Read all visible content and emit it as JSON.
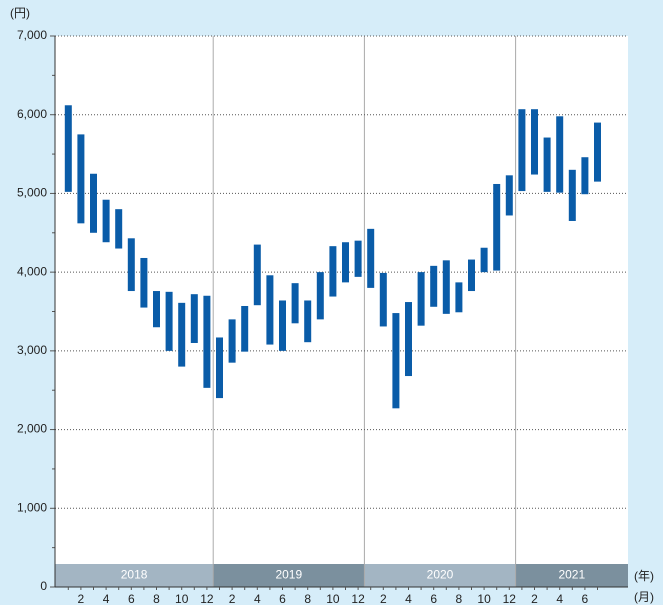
{
  "chart_data": {
    "type": "range-bar",
    "y_unit": "(円)",
    "year_unit": "(年)",
    "month_unit": "(月)",
    "years": [
      "2018",
      "2019",
      "2020",
      "2021"
    ],
    "categories": [
      null,
      "2",
      null,
      "4",
      null,
      "6",
      null,
      "8",
      null,
      "10",
      null,
      "12",
      null,
      "2",
      null,
      "4",
      null,
      "6",
      null,
      "8",
      null,
      "10",
      null,
      "12",
      null,
      "2",
      null,
      "4",
      null,
      "6",
      null,
      "8",
      null,
      "10",
      null,
      "12",
      null,
      "2",
      null,
      "4",
      null,
      "6",
      null
    ],
    "high": [
      6120,
      5750,
      5250,
      4920,
      4800,
      4430,
      4180,
      3760,
      3750,
      3610,
      3720,
      3700,
      3170,
      3400,
      3570,
      4350,
      3960,
      3640,
      3860,
      3640,
      4000,
      4330,
      4380,
      4400,
      4550,
      3990,
      3480,
      3620,
      4000,
      4080,
      4150,
      3870,
      4160,
      4310,
      5120,
      5230,
      6070,
      6070,
      5710,
      5980,
      5300,
      5460,
      5900
    ],
    "low": [
      5020,
      4620,
      4500,
      4380,
      4300,
      3760,
      3550,
      3300,
      3000,
      2800,
      3100,
      2530,
      2400,
      2850,
      2990,
      3580,
      3080,
      3000,
      3350,
      3110,
      3400,
      3690,
      3870,
      3940,
      3800,
      3310,
      2270,
      2680,
      3320,
      3560,
      3470,
      3490,
      3760,
      4000,
      4020,
      4720,
      5030,
      5240,
      5020,
      5010,
      4650,
      4990,
      5150
    ],
    "color": "#0a5ca8",
    "ylim": [
      0,
      7000
    ],
    "yticks": [
      0,
      {
        "value": 1000,
        "label": "1,000"
      },
      {
        "value": 2000,
        "label": "2,000"
      },
      {
        "value": 3000,
        "label": "3,000"
      },
      {
        "value": 4000,
        "label": "4,000"
      },
      {
        "value": 5000,
        "label": "5,000"
      },
      {
        "value": 6000,
        "label": "6,000"
      },
      {
        "value": 7000,
        "label": "7,000"
      }
    ],
    "grid": true
  }
}
